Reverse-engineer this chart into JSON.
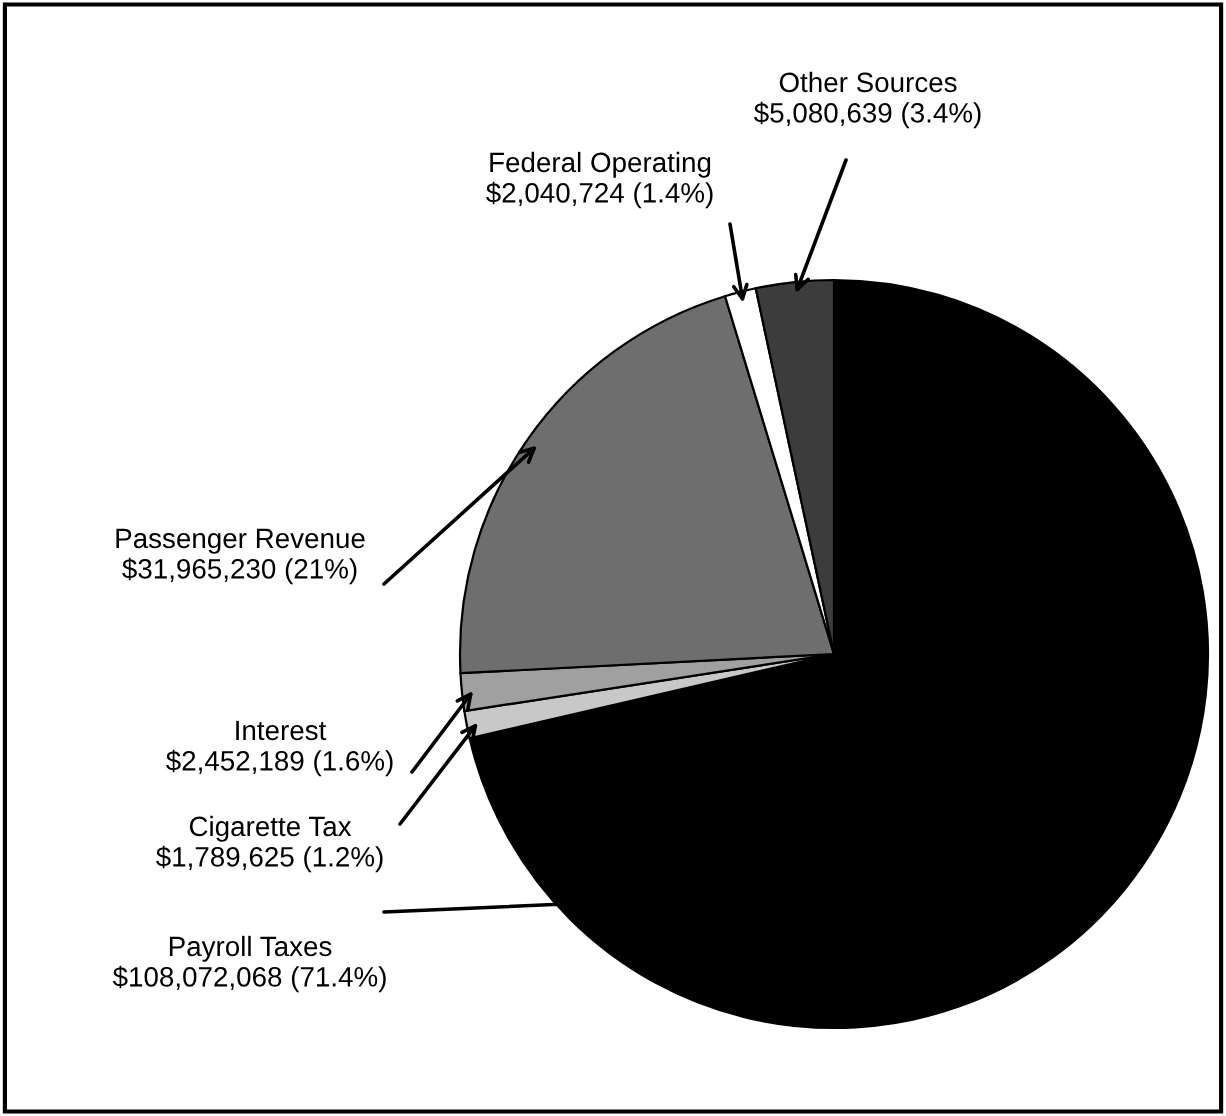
{
  "chart_data": {
    "type": "pie",
    "categories": [
      "Payroll Taxes",
      "Cigarette Tax",
      "Interest",
      "Passenger Revenue",
      "Federal Operating",
      "Other Sources"
    ],
    "values": [
      108072068,
      1789625,
      2452189,
      31965230,
      2040724,
      5080639
    ],
    "colors": [
      "#000000",
      "#c8c8c8",
      "#a0a0a0",
      "#6e6e6e",
      "#ffffff",
      "#3c3c3c"
    ],
    "value_labels": [
      "$108,072,068 (71.4%)",
      "$1,789,625 (1.2%)",
      "$2,452,189 (1.6%)",
      "$31,965,230 (21%)",
      "$2,040,724 (1.4%)",
      "$5,080,639 (3.4%)"
    ],
    "legend": false
  }
}
